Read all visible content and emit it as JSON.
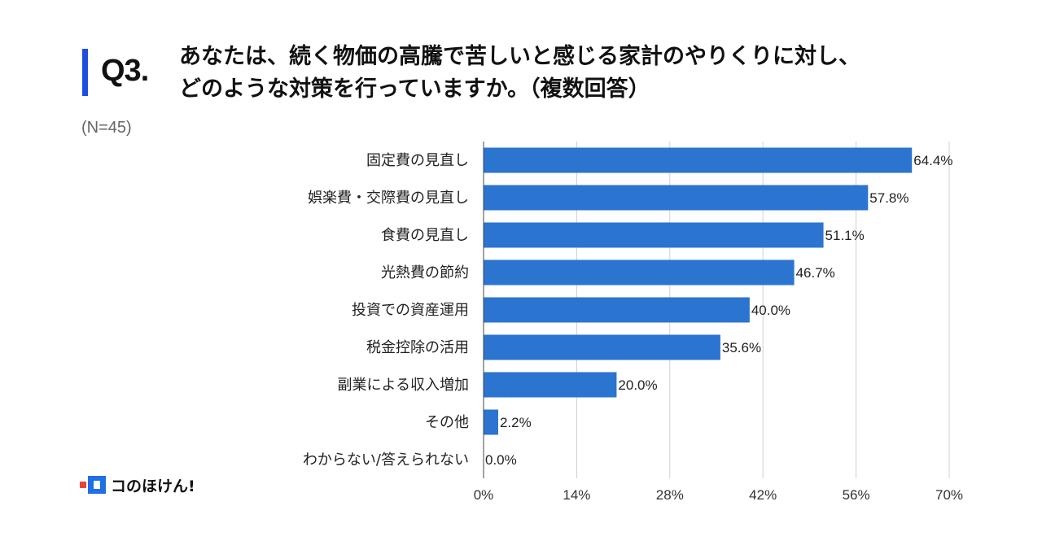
{
  "header": {
    "question": "Q3.",
    "title_line1": "あなたは、続く物価の高騰で苦しいと感じる家計のやりくりに対し、",
    "title_line2": "どのような対策を行っていますか。（複数回答）",
    "n_label": "(N=45)"
  },
  "logo": {
    "text": "コのほけん!"
  },
  "colors": {
    "bar": "#2b74cf",
    "accent": "#1f4fe0",
    "grid": "#d0d0d0"
  },
  "chart_data": {
    "type": "bar",
    "orientation": "horizontal",
    "categories": [
      "固定費の見直し",
      "娯楽費・交際費の見直し",
      "食費の見直し",
      "光熱費の節約",
      "投資での資産運用",
      "税金控除の活用",
      "副業による収入増加",
      "その他",
      "わからない/答えられない"
    ],
    "values": [
      64.4,
      57.8,
      51.1,
      46.7,
      40.0,
      35.6,
      20.0,
      2.2,
      0.0
    ],
    "value_labels": [
      "64.4%",
      "57.8%",
      "51.1%",
      "46.7%",
      "40.0%",
      "35.6%",
      "20.0%",
      "2.2%",
      "0.0%"
    ],
    "xlim": [
      0,
      70
    ],
    "xticks": [
      0,
      14,
      28,
      42,
      56,
      70
    ],
    "xtick_labels": [
      "0%",
      "14%",
      "28%",
      "42%",
      "56%",
      "70%"
    ],
    "grid": true,
    "xlabel": "",
    "ylabel": ""
  }
}
